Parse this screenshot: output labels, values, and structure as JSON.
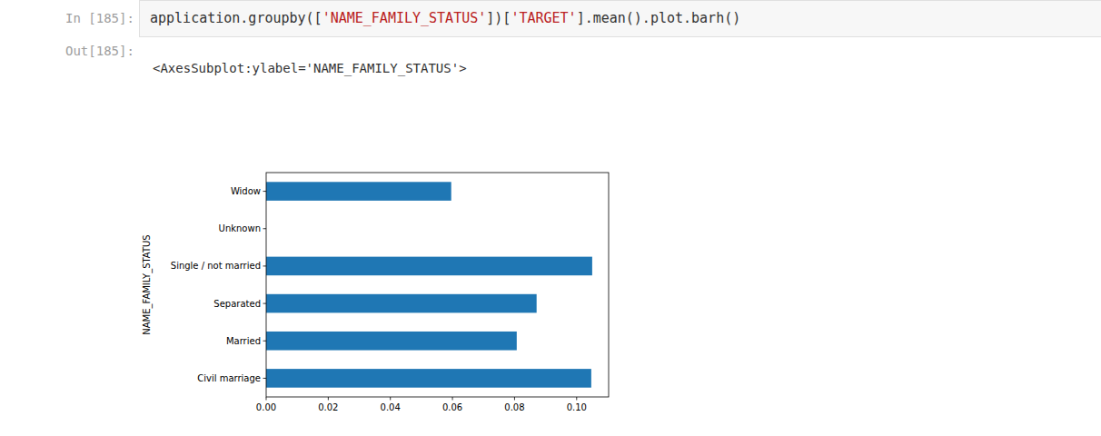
{
  "notebook": {
    "input_prompt": "In [185]:",
    "code": "application.groupby(['NAME_FAMILY_STATUS'])['TARGET'].mean().plot.barh()",
    "output_prompt": "Out[185]:",
    "output_text": "<AxesSubplot:ylabel='NAME_FAMILY_STATUS'>"
  },
  "chart_data": {
    "type": "bar",
    "orientation": "horizontal",
    "y_label": "NAME_FAMILY_STATUS",
    "categories": [
      "Civil marriage",
      "Married",
      "Separated",
      "Single / not married",
      "Unknown",
      "Widow"
    ],
    "values": [
      0.1047,
      0.0807,
      0.0871,
      0.105,
      0,
      0.0596
    ],
    "color": "#1f77b4",
    "xlim": [
      0,
      0.1103
    ],
    "xticks": [
      {
        "value": 0,
        "label": "0.00"
      },
      {
        "value": 0.02,
        "label": "0.02"
      },
      {
        "value": 0.04,
        "label": "0.04"
      },
      {
        "value": 0.06,
        "label": "0.06"
      },
      {
        "value": 0.08,
        "label": "0.08"
      },
      {
        "value": 0.1,
        "label": "0.10"
      }
    ],
    "grid": false
  }
}
